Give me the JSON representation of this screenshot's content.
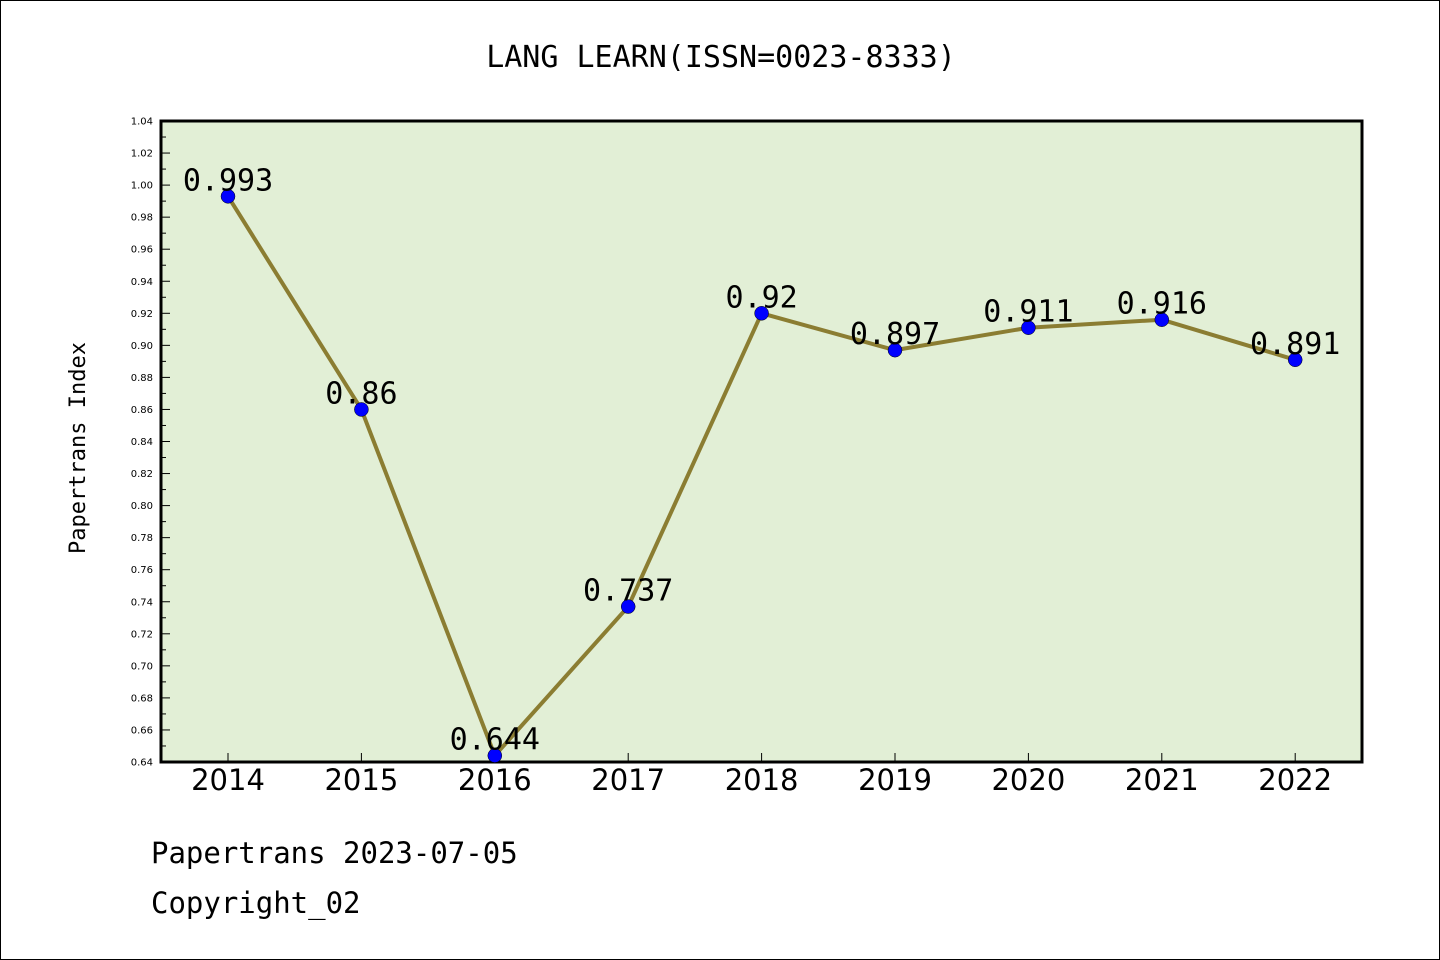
{
  "footer": {
    "line1": "Papertrans 2023-07-05",
    "line2": "Copyright_02"
  },
  "colors": {
    "plot_background": "#e2efd6",
    "line": "#8b7d32",
    "marker": "#0000ff"
  },
  "chart_data": {
    "type": "line",
    "title": "LANG LEARN(ISSN=0023-8333)",
    "xlabel": "",
    "ylabel": "Papertrans Index",
    "categories": [
      "2014",
      "2015",
      "2016",
      "2017",
      "2018",
      "2019",
      "2020",
      "2021",
      "2022"
    ],
    "series": [
      {
        "values": [
          0.993,
          0.86,
          0.644,
          0.737,
          0.92,
          0.897,
          0.911,
          0.916,
          0.891
        ],
        "data_labels": [
          "0.993",
          "0.86",
          "0.644",
          "0.737",
          "0.92",
          "0.897",
          "0.911",
          "0.916",
          "0.891"
        ]
      }
    ],
    "ylim": [
      0.64,
      1.04
    ],
    "yticks": [
      "0.64",
      "0.66",
      "0.68",
      "0.70",
      "0.72",
      "0.74",
      "0.76",
      "0.78",
      "0.80",
      "0.82",
      "0.84",
      "0.86",
      "0.88",
      "0.90",
      "0.92",
      "0.94",
      "0.96",
      "0.98",
      "1.00",
      "1.02",
      "1.04"
    ],
    "grid": false,
    "legend": "none"
  }
}
